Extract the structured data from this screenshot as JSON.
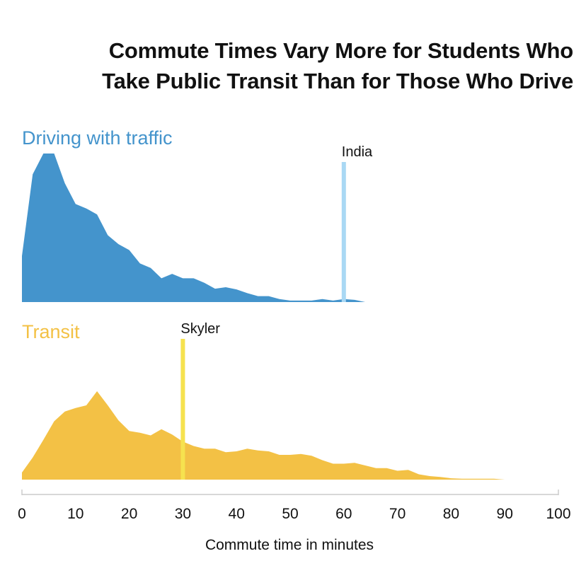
{
  "chart_data": {
    "type": "area",
    "title_lines": [
      "Commute Times Vary More for Students Who",
      "Take Public Transit Than for Those Who Drive"
    ],
    "xlabel": "Commute time in minutes",
    "xlim": [
      0,
      100
    ],
    "xticks": [
      0,
      10,
      20,
      30,
      40,
      50,
      60,
      70,
      80,
      90,
      100
    ],
    "series": [
      {
        "name": "Driving with traffic",
        "color": "#4494cc",
        "x": [
          0,
          2,
          4,
          6,
          8,
          10,
          12,
          14,
          16,
          18,
          20,
          22,
          24,
          26,
          28,
          30,
          32,
          34,
          36,
          38,
          40,
          42,
          44,
          46,
          48,
          50,
          52,
          54,
          56,
          58,
          60,
          62,
          64
        ],
        "density": [
          0.31,
          0.86,
          1.0,
          1.0,
          0.8,
          0.66,
          0.63,
          0.59,
          0.45,
          0.39,
          0.35,
          0.26,
          0.23,
          0.16,
          0.19,
          0.16,
          0.16,
          0.13,
          0.09,
          0.1,
          0.085,
          0.06,
          0.04,
          0.04,
          0.02,
          0.01,
          0.01,
          0.01,
          0.02,
          0.01,
          0.02,
          0.015,
          0.0
        ],
        "marker": {
          "label": "India",
          "x": 60,
          "color": "#a9d8f4"
        }
      },
      {
        "name": "Transit",
        "color": "#f3c145",
        "x": [
          0,
          2,
          4,
          6,
          8,
          10,
          12,
          14,
          16,
          18,
          20,
          22,
          24,
          26,
          28,
          30,
          32,
          34,
          36,
          38,
          40,
          42,
          44,
          46,
          48,
          50,
          52,
          54,
          56,
          58,
          60,
          62,
          64,
          66,
          68,
          70,
          72,
          74,
          76,
          78,
          80,
          82,
          84,
          86,
          88,
          90
        ],
        "density": [
          0.08,
          0.25,
          0.45,
          0.66,
          0.77,
          0.81,
          0.84,
          1.0,
          0.84,
          0.67,
          0.55,
          0.53,
          0.5,
          0.57,
          0.51,
          0.43,
          0.38,
          0.35,
          0.35,
          0.31,
          0.32,
          0.35,
          0.33,
          0.32,
          0.28,
          0.28,
          0.29,
          0.27,
          0.22,
          0.18,
          0.18,
          0.19,
          0.16,
          0.13,
          0.13,
          0.1,
          0.11,
          0.06,
          0.04,
          0.03,
          0.015,
          0.01,
          0.01,
          0.01,
          0.01,
          0.0
        ],
        "marker": {
          "label": "Skyler",
          "x": 30,
          "color": "#f6e24f"
        }
      }
    ]
  }
}
